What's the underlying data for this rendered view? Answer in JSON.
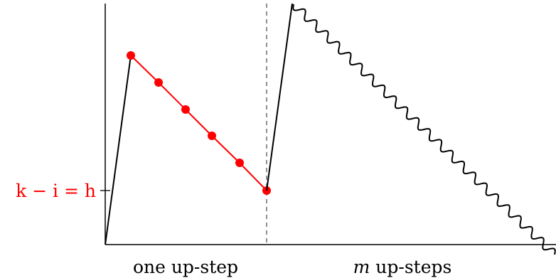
{
  "diagram": {
    "left_label": "k − i = h",
    "bottom_labels": {
      "left": "one up-step",
      "right_var": "m",
      "right_rest": " up-steps"
    },
    "colors": {
      "path": "#000000",
      "highlight": "#ff0000",
      "dashed": "#555555"
    }
  }
}
